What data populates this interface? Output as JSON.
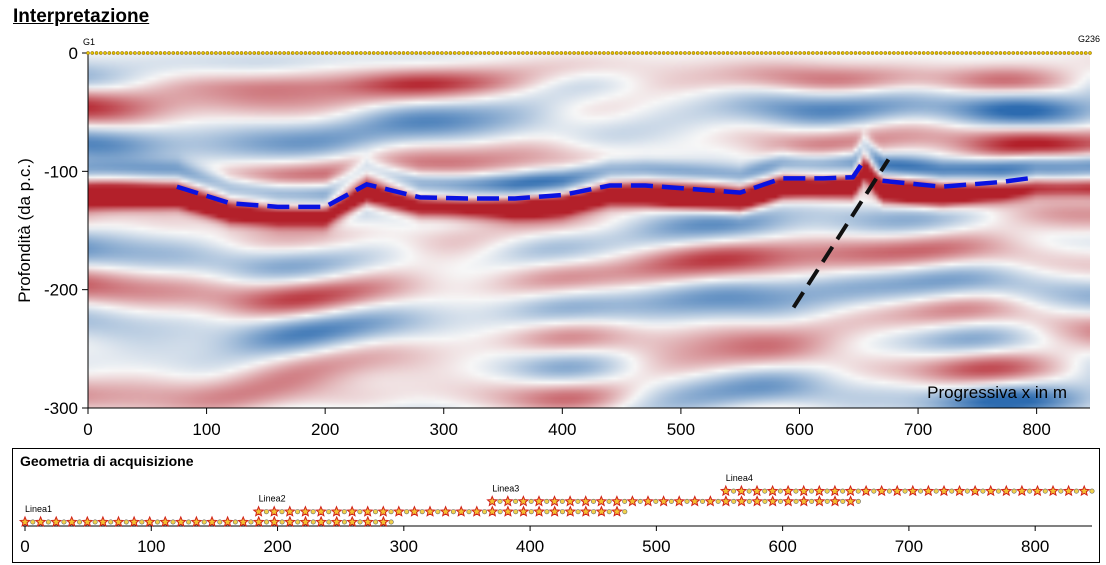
{
  "title": "Interpretazione",
  "chart_data": [
    {
      "type": "heatmap",
      "title": "Interpretazione",
      "ylabel": "Profondità (da p.c.)",
      "xlabel": "Progressiva x in m",
      "xlim": [
        0,
        845
      ],
      "ylim": [
        -300,
        0
      ],
      "xticks": [
        0,
        100,
        200,
        300,
        400,
        500,
        600,
        700,
        800
      ],
      "yticks": [
        0,
        -100,
        -200,
        -300
      ],
      "ytick_labels": [
        "0",
        "-100",
        "-200",
        "-300"
      ],
      "geophone_first": "G1",
      "geophone_last": "G236",
      "colormap": {
        "negative": "#2c6bb0",
        "zero": "#f7f7f7",
        "positive": "#b3202a"
      },
      "interpretation": {
        "horizon": {
          "name": "reflector",
          "color": "#0a12e0",
          "x": [
            75,
            120,
            160,
            200,
            235,
            280,
            320,
            360,
            400,
            440,
            470,
            510,
            550,
            585,
            620,
            645,
            655
          ],
          "y": [
            -113,
            -127,
            -130,
            -130,
            -111,
            -122,
            -123,
            -123,
            -120,
            -112,
            -112,
            -115,
            -118,
            -106,
            -106,
            -105,
            -90
          ]
        },
        "horizon2": {
          "name": "reflector-east",
          "color": "#0a12e0",
          "x": [
            670,
            720,
            770,
            800
          ],
          "y": [
            -108,
            -113,
            -109,
            -105
          ]
        },
        "fault": {
          "name": "fault",
          "color": "#111111",
          "x": [
            595,
            675
          ],
          "y": [
            -215,
            -90
          ]
        }
      }
    },
    {
      "type": "scatter",
      "title": "Geometria di acquisizione",
      "xlim": [
        0,
        845
      ],
      "xticks": [
        0,
        100,
        200,
        300,
        400,
        500,
        600,
        700,
        800
      ],
      "lines": [
        {
          "name": "Linea1",
          "x_start": 0,
          "x_end": 290,
          "level": 1
        },
        {
          "name": "Linea2",
          "x_start": 185,
          "x_end": 475,
          "level": 2
        },
        {
          "name": "Linea3",
          "x_start": 370,
          "x_end": 660,
          "level": 3
        },
        {
          "name": "Linea4",
          "x_start": 555,
          "x_end": 845,
          "level": 4
        }
      ]
    }
  ]
}
